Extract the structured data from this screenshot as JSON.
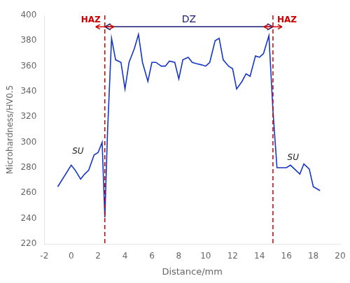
{
  "chart_data": {
    "type": "line",
    "x": [
      -1.0,
      0.0,
      0.3,
      0.7,
      1.0,
      1.3,
      1.7,
      2.0,
      2.3,
      2.5,
      2.7,
      3.0,
      3.3,
      3.7,
      4.0,
      4.3,
      4.7,
      5.0,
      5.3,
      5.7,
      6.0,
      6.3,
      6.7,
      7.0,
      7.3,
      7.7,
      8.0,
      8.3,
      8.7,
      9.0,
      9.3,
      9.7,
      10.0,
      10.3,
      10.7,
      11.0,
      11.3,
      11.7,
      12.0,
      12.3,
      12.7,
      13.0,
      13.3,
      13.7,
      14.0,
      14.3,
      14.7,
      15.0,
      15.3,
      15.7,
      16.0,
      16.3,
      16.7,
      17.0,
      17.3,
      17.7,
      18.0,
      18.5
    ],
    "values": [
      265,
      282,
      278,
      271,
      275,
      278,
      290,
      292,
      300,
      241,
      308,
      382,
      365,
      363,
      342,
      363,
      374,
      385,
      363,
      348,
      363,
      363,
      360,
      360,
      364,
      363,
      350,
      365,
      367,
      363,
      362,
      361,
      360,
      363,
      380,
      382,
      365,
      360,
      358,
      342,
      348,
      354,
      352,
      368,
      367,
      370,
      384,
      325,
      280,
      280,
      280,
      282,
      278,
      275,
      283,
      279,
      265,
      262
    ],
    "color": "#1535c8",
    "x_label": "Distance/mm",
    "y_label": "Microhardness/HV0.5",
    "xlim": [
      -2,
      20
    ],
    "ylim": [
      220,
      400
    ],
    "xticks": [
      -2,
      0,
      2,
      4,
      6,
      8,
      10,
      12,
      14,
      16,
      18,
      20
    ],
    "yticks": [
      220,
      240,
      260,
      280,
      300,
      320,
      340,
      360,
      380,
      400
    ],
    "grid": false,
    "vlines": [
      {
        "x": 2.5,
        "color": "#cc0000",
        "line_style": "dashed"
      },
      {
        "x": 15.0,
        "color": "#cc0000",
        "line_style": "dashed"
      }
    ],
    "annotations": [
      {
        "text": "DZ",
        "x_from": 2.5,
        "x_to": 15.0,
        "y": 391,
        "color": "#1a1a6e"
      },
      {
        "text": "HAZ",
        "x": 2.5,
        "y": 391,
        "color": "#cc0000",
        "side": "left"
      },
      {
        "text": "HAZ",
        "x": 15.0,
        "y": 391,
        "color": "#cc0000",
        "side": "right"
      },
      {
        "text": "SU",
        "x": 0.5,
        "y": 293,
        "color": "#222222"
      },
      {
        "text": "SU",
        "x": 16.5,
        "y": 288,
        "color": "#222222"
      }
    ]
  }
}
